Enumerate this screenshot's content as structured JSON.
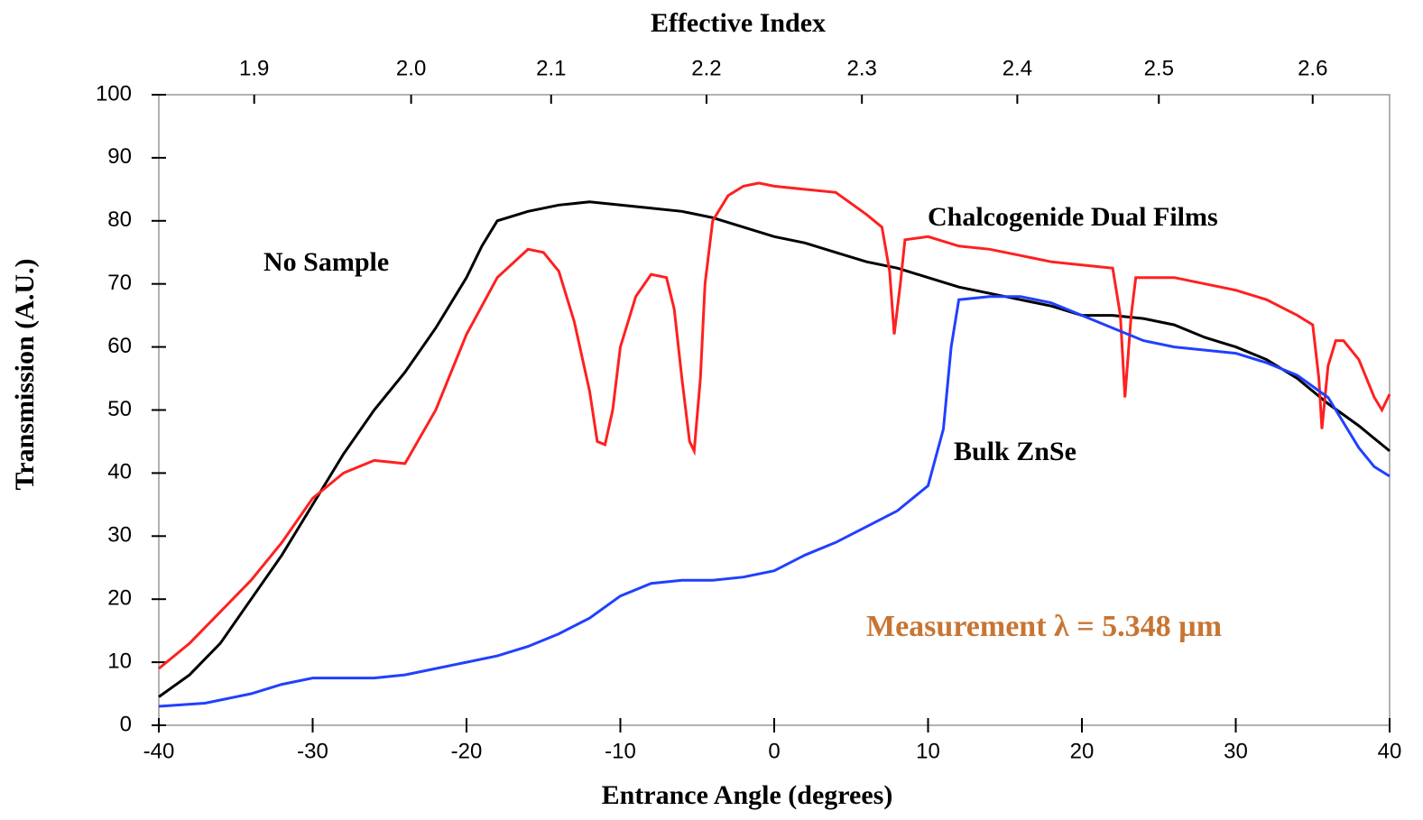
{
  "chart_data": {
    "type": "line",
    "xlabel": "Entrance Angle (degrees)",
    "ylabel": "Transmission (A.U.)",
    "top_axis": {
      "label": "Effective Index",
      "ticks": [
        {
          "value": -33.8,
          "label": "1.9"
        },
        {
          "value": -23.6,
          "label": "2.0"
        },
        {
          "value": -14.5,
          "label": "2.1"
        },
        {
          "value": -4.4,
          "label": "2.2"
        },
        {
          "value": 5.7,
          "label": "2.3"
        },
        {
          "value": 15.8,
          "label": "2.4"
        },
        {
          "value": 25.0,
          "label": "2.5"
        },
        {
          "value": 35.0,
          "label": "2.6"
        }
      ]
    },
    "annotation": "Measurement λ = 5.348 µm",
    "xlim": [
      -40,
      40
    ],
    "xticks": [
      -40,
      -30,
      -20,
      -10,
      0,
      10,
      20,
      30,
      40
    ],
    "ylim": [
      0,
      100
    ],
    "yticks": [
      0,
      10,
      20,
      30,
      40,
      50,
      60,
      70,
      80,
      90,
      100
    ],
    "series": [
      {
        "name": "No Sample",
        "color": "#000000",
        "x": [
          -40,
          -38,
          -36,
          -34,
          -32,
          -30,
          -28,
          -26,
          -24,
          -22,
          -20,
          -19,
          -18,
          -16,
          -14,
          -12,
          -10,
          -8,
          -6,
          -4,
          -2,
          0,
          2,
          4,
          6,
          8,
          10,
          12,
          14,
          16,
          18,
          20,
          22,
          24,
          26,
          28,
          30,
          32,
          34,
          36,
          38,
          40
        ],
        "values": [
          4.5,
          8,
          13,
          20,
          27,
          35,
          43,
          50,
          56,
          63,
          71,
          76,
          80,
          81.5,
          82.5,
          83,
          82.5,
          82,
          81.5,
          80.5,
          79,
          77.5,
          76.5,
          75,
          73.5,
          72.5,
          71,
          69.5,
          68.5,
          67.5,
          66.5,
          65,
          65,
          64.5,
          63.5,
          61.5,
          60,
          58,
          55,
          51,
          47.5,
          43.5
        ]
      },
      {
        "name": "Chalcogenide Dual Films",
        "color": "#ff2020",
        "x": [
          -40,
          -38,
          -36,
          -34,
          -32,
          -30,
          -28,
          -26,
          -24,
          -22,
          -20,
          -18,
          -16,
          -15,
          -14,
          -13,
          -12,
          -11.5,
          -11,
          -10.5,
          -10,
          -9,
          -8,
          -7,
          -6.5,
          -6,
          -5.5,
          -5.2,
          -4.8,
          -4.5,
          -4,
          -3,
          -2,
          -1,
          0,
          2,
          4,
          6,
          7,
          7.5,
          7.8,
          8.2,
          8.5,
          10,
          12,
          14,
          16,
          18,
          20,
          22,
          22.5,
          22.8,
          23.2,
          23.5,
          26,
          28,
          30,
          32,
          34,
          35,
          35.4,
          35.6,
          36,
          36.5,
          37,
          38,
          39,
          39.5,
          40
        ],
        "values": [
          9,
          13,
          18,
          23,
          29,
          36,
          40,
          42,
          41.5,
          50,
          62,
          71,
          75.5,
          75,
          72,
          64,
          53,
          45,
          44.5,
          50,
          60,
          68,
          71.5,
          71,
          66,
          55,
          45,
          43.5,
          55,
          70,
          80,
          84,
          85.5,
          86,
          85.5,
          85,
          84.5,
          81,
          79,
          72,
          62,
          70,
          77,
          77.5,
          76,
          75.5,
          74.5,
          73.5,
          73,
          72.5,
          65,
          52,
          65,
          71,
          71,
          70,
          69,
          67.5,
          65,
          63.5,
          55,
          47,
          57,
          61,
          61,
          58,
          52,
          50,
          52.5
        ]
      },
      {
        "name": "Bulk ZnSe",
        "color": "#2040ff",
        "x": [
          -40,
          -37,
          -34,
          -32,
          -30,
          -28,
          -26,
          -24,
          -22,
          -20,
          -18,
          -16,
          -14,
          -12,
          -10,
          -8,
          -6,
          -4,
          -2,
          0,
          2,
          4,
          6,
          8,
          10,
          11,
          11.5,
          12,
          14,
          16,
          18,
          20,
          22,
          24,
          26,
          28,
          30,
          32,
          34,
          36,
          38,
          39,
          40
        ],
        "values": [
          3,
          3.5,
          5,
          6.5,
          7.5,
          7.5,
          7.5,
          8,
          9,
          10,
          11,
          12.5,
          14.5,
          17,
          20.5,
          22.5,
          23,
          23,
          23.5,
          24.5,
          27,
          29,
          31.5,
          34,
          38,
          47,
          60,
          67.5,
          68,
          68,
          67,
          65,
          63,
          61,
          60,
          59.5,
          59,
          57.5,
          55.5,
          52,
          44,
          41,
          39.5
        ]
      }
    ]
  }
}
